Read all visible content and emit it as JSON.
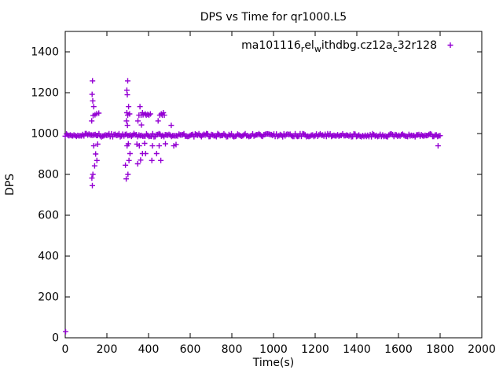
{
  "figure": {
    "background": "#ffffff",
    "text_color": "#000000",
    "axis_color": "#000000"
  },
  "chart_data": {
    "type": "scatter",
    "title": "DPS vs Time for qr1000.L5",
    "xlabel": "Time(s)",
    "ylabel": "DPS",
    "xlim": [
      0,
      2000
    ],
    "ylim": [
      0,
      1500
    ],
    "xticks": [
      0,
      200,
      400,
      600,
      800,
      1000,
      1200,
      1400,
      1600,
      1800,
      2000
    ],
    "yticks": [
      0,
      200,
      400,
      600,
      800,
      1000,
      1200,
      1400
    ],
    "grid": false,
    "legend_position": "top-right-inside",
    "series": [
      {
        "name": "ma101116relwithdbg.cz12ac32r128",
        "label_parts": [
          {
            "t": "ma101116",
            "sub": false
          },
          {
            "t": "r",
            "sub": true
          },
          {
            "t": "el",
            "sub": false
          },
          {
            "t": "w",
            "sub": true
          },
          {
            "t": "ithdbg.cz12a",
            "sub": false
          },
          {
            "t": "c",
            "sub": true
          },
          {
            "t": "32r128",
            "sub": false
          }
        ],
        "marker": "plus",
        "color": "#9400d3",
        "band": {
          "x_start": 0,
          "x_end": 1800,
          "y_center": 992,
          "y_spread": 16,
          "x_step": 6,
          "note": "dense band of overlapping plus markers at ~1000 DPS from t=0 to t=1800"
        },
        "points": [
          [
            2,
            30
          ],
          [
            130,
            745
          ],
          [
            128,
            782
          ],
          [
            133,
            800
          ],
          [
            141,
            842
          ],
          [
            152,
            868
          ],
          [
            146,
            900
          ],
          [
            137,
            940
          ],
          [
            156,
            948
          ],
          [
            127,
            1062
          ],
          [
            134,
            1088
          ],
          [
            143,
            1092
          ],
          [
            151,
            1097
          ],
          [
            161,
            1100
          ],
          [
            137,
            1132
          ],
          [
            132,
            1160
          ],
          [
            129,
            1192
          ],
          [
            131,
            1258
          ],
          [
            293,
            778
          ],
          [
            301,
            800
          ],
          [
            289,
            845
          ],
          [
            306,
            868
          ],
          [
            311,
            902
          ],
          [
            297,
            940
          ],
          [
            303,
            950
          ],
          [
            299,
            1040
          ],
          [
            294,
            1062
          ],
          [
            300,
            1090
          ],
          [
            309,
            1096
          ],
          [
            296,
            1102
          ],
          [
            304,
            1132
          ],
          [
            298,
            1190
          ],
          [
            296,
            1212
          ],
          [
            300,
            1258
          ],
          [
            348,
            852
          ],
          [
            362,
            870
          ],
          [
            371,
            902
          ],
          [
            356,
            940
          ],
          [
            344,
            948
          ],
          [
            381,
            952
          ],
          [
            366,
            1042
          ],
          [
            349,
            1062
          ],
          [
            354,
            1090
          ],
          [
            364,
            1090
          ],
          [
            374,
            1092
          ],
          [
            384,
            1096
          ],
          [
            371,
            1102
          ],
          [
            359,
            1132
          ],
          [
            389,
            1090
          ],
          [
            396,
            1094
          ],
          [
            402,
            1090
          ],
          [
            409,
            1096
          ],
          [
            386,
            902
          ],
          [
            419,
            940
          ],
          [
            416,
            868
          ],
          [
            439,
            902
          ],
          [
            451,
            940
          ],
          [
            446,
            1062
          ],
          [
            454,
            1090
          ],
          [
            461,
            1096
          ],
          [
            466,
            1090
          ],
          [
            471,
            1102
          ],
          [
            476,
            1090
          ],
          [
            481,
            950
          ],
          [
            459,
            868
          ],
          [
            509,
            1040
          ],
          [
            521,
            940
          ],
          [
            532,
            946
          ],
          [
            1790,
            940
          ]
        ]
      }
    ]
  }
}
